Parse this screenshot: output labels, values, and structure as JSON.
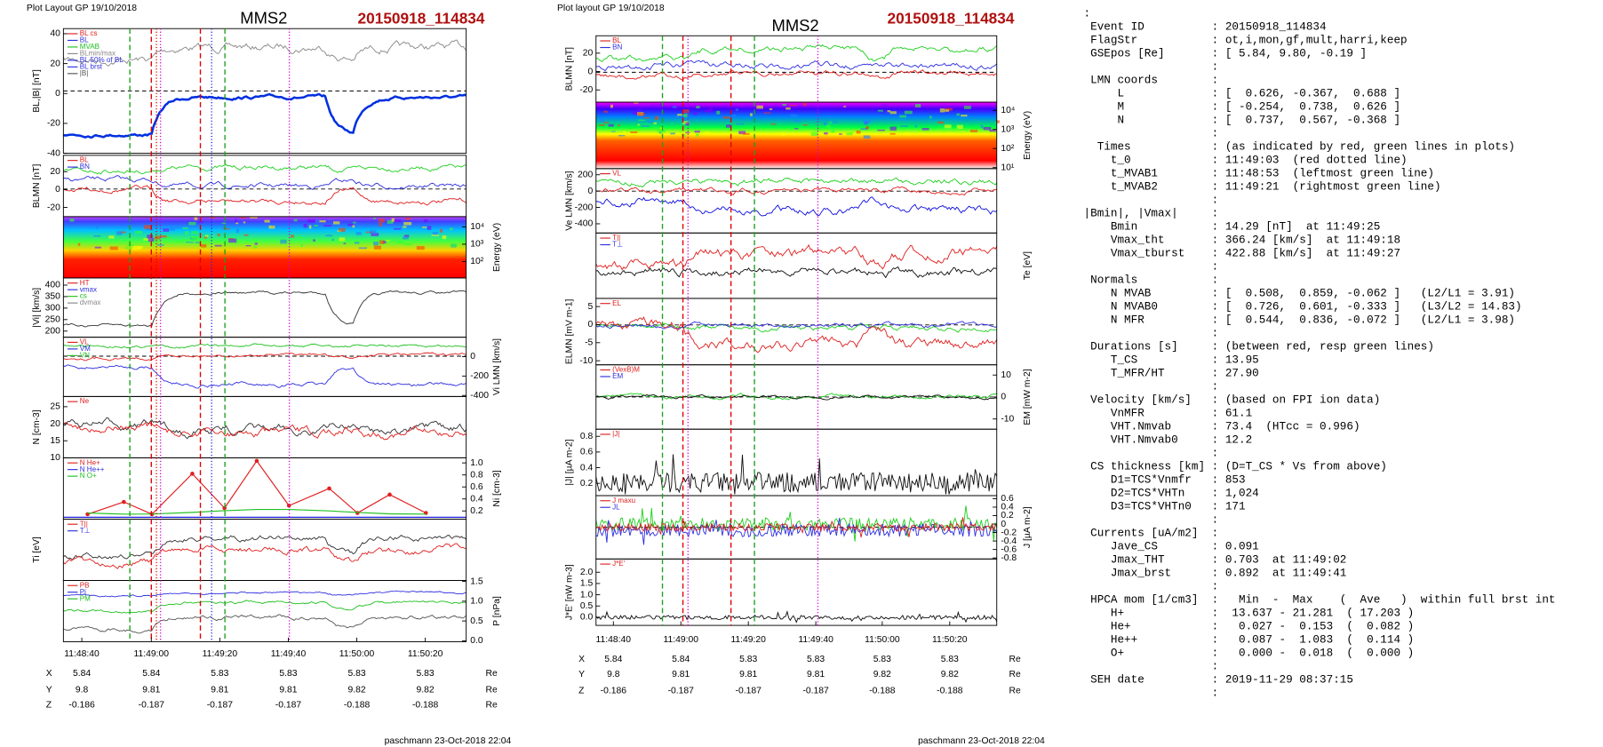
{
  "left": {
    "header": "Plot Layout GP 19/10/2018",
    "title": "MMS2",
    "event": "20150918_114834",
    "panels": [
      {
        "ylabel": "BL,|B| [nT]",
        "yticks": [
          "40",
          "20",
          "0",
          "-20",
          "-40"
        ],
        "legend": [
          "BL cs",
          "BL",
          "MVAB",
          "BLmin/max",
          "BL 50% of BL",
          "BL brst",
          "|B|"
        ]
      },
      {
        "ylabel": "BLMN [nT]",
        "yticks": [
          "20",
          "0",
          "-20"
        ],
        "legend": [
          "BL",
          "BN"
        ]
      },
      {
        "ylabel": "Energy (eV)",
        "yticks": [
          "10⁴",
          "10³",
          "10²"
        ],
        "legend": []
      },
      {
        "ylabel": "|Vi| [km/s]",
        "yticks": [
          "400",
          "350",
          "300",
          "250",
          "200"
        ],
        "legend": [
          "HT",
          "vmax",
          "cs",
          "dvmax"
        ]
      },
      {
        "ylabel": "Vi LMN [km/s]",
        "yticks": [
          "0",
          "-200",
          "-400"
        ],
        "legend": [
          "VL",
          "VM",
          "VN"
        ]
      },
      {
        "ylabel": "N [cm-3]",
        "yticks": [
          "25",
          "20",
          "15",
          "10"
        ],
        "legend": [
          "Ne"
        ]
      },
      {
        "ylabel": "Ni [cm-3]",
        "yticks": [
          "1.0",
          "0.8",
          "0.6",
          "0.4",
          "0.2"
        ],
        "legend": [
          "N He+",
          "N He++",
          "N O+"
        ]
      },
      {
        "ylabel": "Ti [eV]",
        "yticks": [],
        "legend": [
          "T||",
          "T⊥"
        ]
      },
      {
        "ylabel": "P [nPa]",
        "yticks": [
          "1.5",
          "1.0",
          "0.5",
          "0.0"
        ],
        "legend": [
          "PB",
          "Pi",
          "PM"
        ]
      }
    ],
    "xticks": [
      "11:48:40",
      "11:49:00",
      "11:49:20",
      "11:49:40",
      "11:50:00",
      "11:50:20"
    ],
    "ephemeris": [
      {
        "coord": "X",
        "values": [
          "5.84",
          "5.84",
          "5.83",
          "5.83",
          "5.83",
          "5.83"
        ],
        "unit": "Re"
      },
      {
        "coord": "Y",
        "values": [
          "9.8",
          "9.81",
          "9.81",
          "9.81",
          "9.82",
          "9.82"
        ],
        "unit": "Re"
      },
      {
        "coord": "Z",
        "values": [
          "-0.186",
          "-0.187",
          "-0.187",
          "-0.187",
          "-0.188",
          "-0.188"
        ],
        "unit": "Re"
      }
    ],
    "footer": "paschmann 23-Oct-2018 22:04"
  },
  "middle": {
    "header": "Plot layout GP 19/10/2018",
    "title": "MMS2",
    "event": "20150918_114834",
    "panels": [
      {
        "ylabel": "BLMN [nT]",
        "yticks": [
          "20",
          "0",
          "-20"
        ],
        "legend": [
          "BL",
          "BN"
        ]
      },
      {
        "ylabel": "Energy (eV)",
        "yticks": [
          "10⁴",
          "10³",
          "10²",
          "10¹"
        ],
        "legend": []
      },
      {
        "ylabel": "Ve LMN [km/s]",
        "yticks": [
          "200",
          "0",
          "-200",
          "-400"
        ],
        "legend": [
          "VL"
        ]
      },
      {
        "ylabel": "Te [eV]",
        "yticks": [],
        "legend": [
          "T||",
          "T⊥"
        ]
      },
      {
        "ylabel": "ELMN [mV m-1]",
        "yticks": [
          "5",
          "0",
          "-5",
          "-10"
        ],
        "legend": [
          "EL"
        ]
      },
      {
        "ylabel": "EM [mW m-2]",
        "yticks": [
          "10",
          "0",
          "-10"
        ],
        "legend": [
          "(VexB)M",
          "EM"
        ]
      },
      {
        "ylabel": "|J| [µA m-2]",
        "yticks": [
          "0.8",
          "0.6",
          "0.4",
          "0.2"
        ],
        "legend": [
          "|J|"
        ]
      },
      {
        "ylabel": "J [µA m-2]",
        "yticks": [
          "0.6",
          "0.4",
          "0.2",
          "0",
          "-0.2",
          "-0.4",
          "-0.6",
          "-0.8"
        ],
        "legend": [
          "J maxu",
          "JL"
        ]
      },
      {
        "ylabel": "J*E' [nW m-3]",
        "yticks": [
          "2.0",
          "1.5",
          "1.0",
          "0.5",
          "0.0"
        ],
        "legend": [
          "J*E'"
        ]
      }
    ],
    "xticks": [
      "11:48:40",
      "11:49:00",
      "11:49:20",
      "11:49:40",
      "11:50:00",
      "11:50:20"
    ],
    "ephemeris": [
      {
        "coord": "X",
        "values": [
          "5.84",
          "5.84",
          "5.83",
          "5.83",
          "5.83",
          "5.83"
        ],
        "unit": "Re"
      },
      {
        "coord": "Y",
        "values": [
          "9.8",
          "9.81",
          "9.81",
          "9.81",
          "9.82",
          "9.82"
        ],
        "unit": "Re"
      },
      {
        "coord": "Z",
        "values": [
          "-0.186",
          "-0.187",
          "-0.187",
          "-0.187",
          "-0.188",
          "-0.188"
        ],
        "unit": "Re"
      }
    ],
    "footer": "paschmann 23-Oct-2018 22:04"
  },
  "summary": {
    "lines": [
      ":",
      " Event ID          : 20150918_114834",
      " FlagStr           : ot,i,mon,gf,mult,harri,keep",
      " GSEpos [Re]       : [ 5.84, 9.80, -0.19 ]",
      "                   :",
      " LMN coords        :",
      "     L             : [  0.626, -0.367,  0.688 ]",
      "     M             : [ -0.254,  0.738,  0.626 ]",
      "     N             : [  0.737,  0.567, -0.368 ]",
      "                   :",
      "  Times            : (as indicated by red, green lines in plots)",
      "    t_0            : 11:49:03  (red dotted line)",
      "    t_MVAB1        : 11:48:53  (leftmost green line)",
      "    t_MVAB2        : 11:49:21  (rightmost green line)",
      "                   :",
      "|Bmin|, |Vmax|     :",
      "    Bmin           : 14.29 [nT]  at 11:49:25",
      "    Vmax_tht       : 366.24 [km/s]  at 11:49:18",
      "    Vmax_tburst    : 422.88 [km/s]  at 11:49:27",
      "                   :",
      " Normals           :",
      "    N MVAB         : [  0.508,  0.859, -0.062 ]   (L2/L1 = 3.91)",
      "    N MVAB0        : [  0.726,  0.601, -0.333 ]   (L3/L2 = 14.83)",
      "    N MFR          : [  0.544,  0.836, -0.072 ]   (L2/L1 = 3.98)",
      "                   :",
      " Durations [s]     : (between red, resp green lines)",
      "    T_CS           : 13.95",
      "    T_MFR/HT       : 27.90",
      "                   :",
      " Velocity [km/s]   : (based on FPI ion data)",
      "    VnMFR          : 61.1",
      "    VHT.Nmvab      : 73.4  (HTcc = 0.996)",
      "    VHT.Nmvab0     : 12.2",
      "                   :",
      " CS thickness [km] : (D=T_CS * Vs from above)",
      "    D1=TCS*Vnmfr   : 853",
      "    D2=TCS*VHTn    : 1,024",
      "    D3=TCS*VHTn0   : 171",
      "                   :",
      " Currents [uA/m2]  :",
      "    Jave_CS        : 0.091",
      "    Jmax_THT       : 0.703  at 11:49:02",
      "    Jmax_brst      : 0.892  at 11:49:41",
      "                   :",
      " HPCA mom [1/cm3]  :   Min  -  Max    (  Ave   )  within full brst int",
      "    H+             :  13.637 - 21.281  ( 17.203 )",
      "    He+            :   0.027 -  0.153  (  0.082 )",
      "    He++           :   0.087 -  1.083  (  0.114 )",
      "    O+             :   0.000 -  0.018  (  0.000 )",
      "                   :",
      " SEH date          : 2019-11-29 08:37:15",
      "                   :"
    ]
  }
}
